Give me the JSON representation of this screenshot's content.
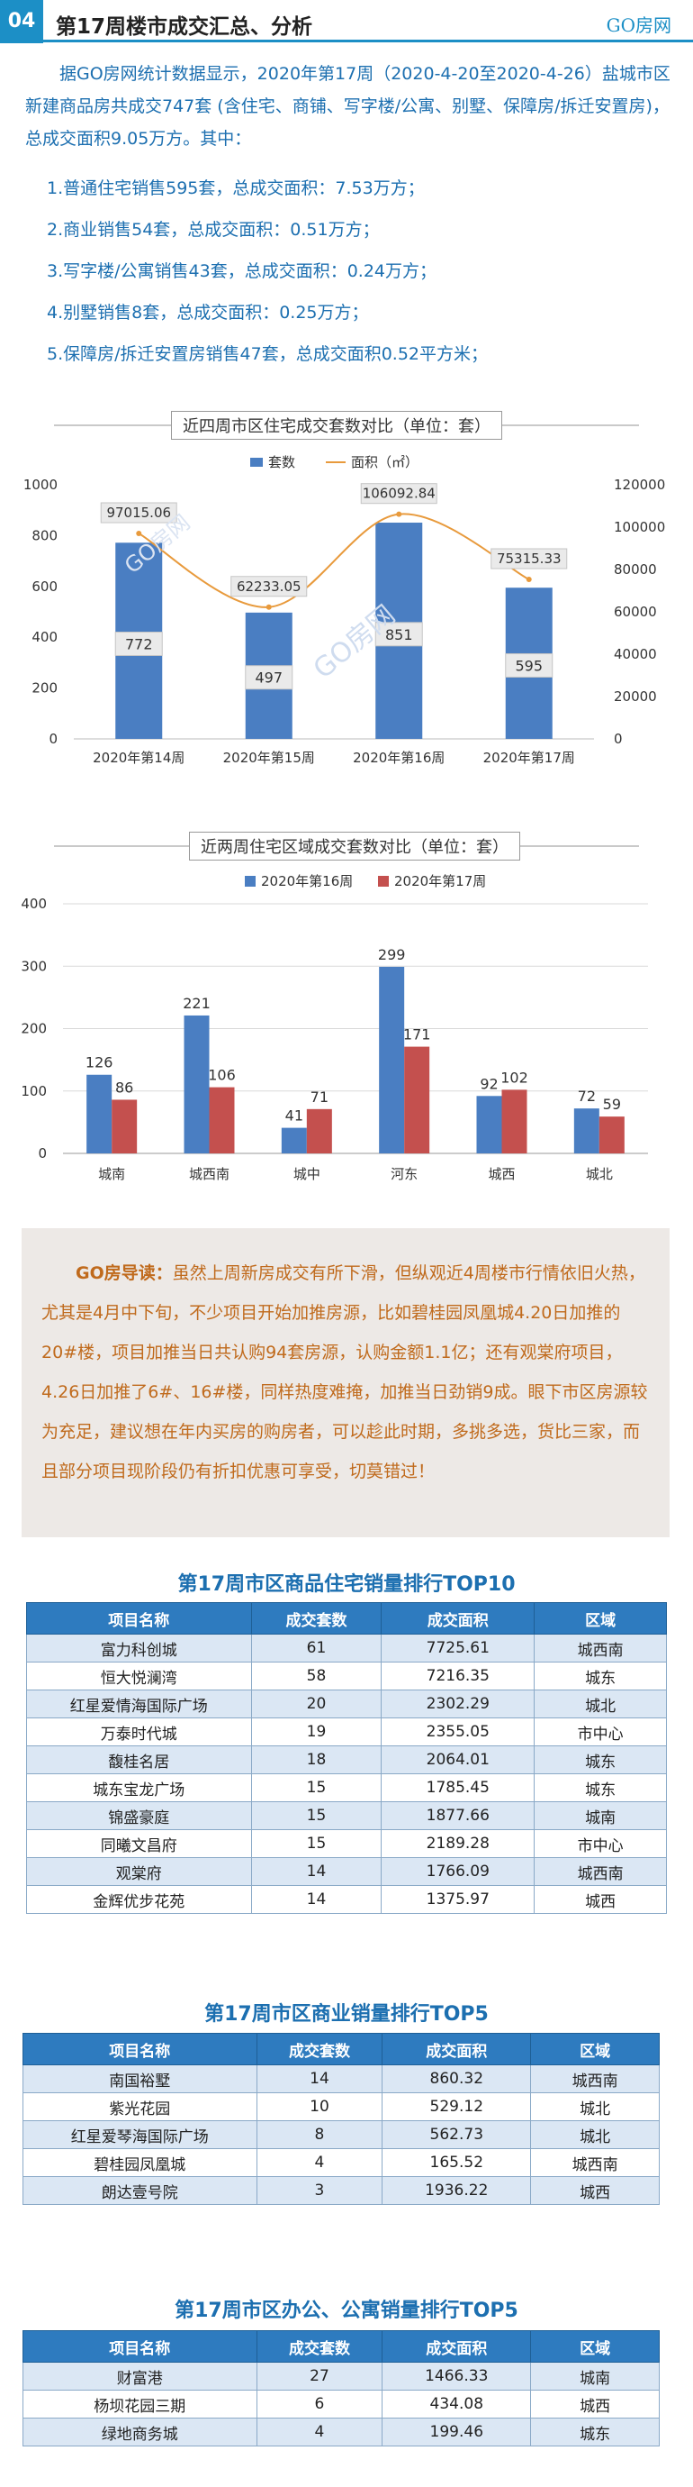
{
  "header": {
    "num": "04",
    "title": "第17周楼市成交汇总、分析",
    "logo": "GO房网"
  },
  "intro": "据GO房网统计数据显示，2020年第17周（2020-4-20至2020-4-26）盐城市区新建商品房共成交747套 (含住宅、商铺、写字楼/公寓、别墅、保障房/拆迁安置房)，总成交面积9.05万方。其中：",
  "stats": [
    "1.普通住宅销售595套，总成交面积：7.53万方；",
    "2.商业销售54套，总成交面积：0.51万方；",
    "3.写字楼/公寓销售43套，总成交面积：0.24万方；",
    "4.别墅销售8套，总成交面积：0.25万方；",
    "5.保障房/拆迁安置房销售47套，总成交面积0.52平方米；"
  ],
  "chart_data": [
    {
      "type": "bar",
      "title": "近四周市区住宅成交套数对比（单位：套）",
      "categories": [
        "2020年第14周",
        "2020年第15周",
        "2020年第16周",
        "2020年第17周"
      ],
      "series": [
        {
          "name": "套数",
          "kind": "bar",
          "values": [
            772,
            497,
            851,
            595
          ],
          "color": "#4a7ec2",
          "axis": "left"
        },
        {
          "name": "面积（㎡）",
          "kind": "line",
          "values": [
            97015.06,
            62233.05,
            106092.84,
            75315.33
          ],
          "color": "#e89a3c",
          "axis": "right"
        }
      ],
      "ylim_left": [
        0,
        1000
      ],
      "yticks_left": [
        0,
        200,
        400,
        600,
        800,
        1000
      ],
      "ylim_right": [
        0,
        120000
      ],
      "yticks_right": [
        0,
        20000,
        40000,
        60000,
        80000,
        100000,
        120000
      ],
      "watermark": "GO房网",
      "legend": "top-center"
    },
    {
      "type": "bar",
      "title": "近两周住宅区域成交套数对比（单位：套）",
      "categories": [
        "城南",
        "城西南",
        "城中",
        "河东",
        "城西",
        "城北"
      ],
      "series": [
        {
          "name": "2020年第16周",
          "values": [
            126,
            221,
            41,
            299,
            92,
            72
          ],
          "color": "#4a7ec2"
        },
        {
          "name": "2020年第17周",
          "values": [
            86,
            106,
            71,
            171,
            102,
            59
          ],
          "color": "#c4504e"
        }
      ],
      "ylim": [
        0,
        400
      ],
      "yticks": [
        0,
        100,
        200,
        300,
        400
      ],
      "grid": true,
      "legend": "top-center"
    }
  ],
  "guide": {
    "label": "GO房导读：",
    "text": "虽然上周新房成交有所下滑，但纵观近4周楼市行情依旧火热，尤其是4月中下旬，不少项目开始加推房源，比如碧桂园凤凰城4.20日加推的20#楼，项目加推当日共认购94套房源，认购金额1.1亿；还有观棠府项目，4.26日加推了6#、16#楼，同样热度难掩，加推当日劲销9成。眼下市区房源较为充足，建议想在年内买房的购房者，可以趁此时期，多挑多选，货比三家，而且部分项目现阶段仍有折扣优惠可享受，切莫错过！"
  },
  "tables": [
    {
      "title": "第17周市区商品住宅销量排行TOP10",
      "headers": [
        "项目名称",
        "成交套数",
        "成交面积",
        "区域"
      ],
      "rows": [
        [
          "富力科创城",
          "61",
          "7725.61",
          "城西南"
        ],
        [
          "恒大悦澜湾",
          "58",
          "7216.35",
          "城东"
        ],
        [
          "红星爱情海国际广场",
          "20",
          "2302.29",
          "城北"
        ],
        [
          "万泰时代城",
          "19",
          "2355.05",
          "市中心"
        ],
        [
          "馥桂名居",
          "18",
          "2064.01",
          "城东"
        ],
        [
          "城东宝龙广场",
          "15",
          "1785.45",
          "城东"
        ],
        [
          "锦盛豪庭",
          "15",
          "1877.66",
          "城南"
        ],
        [
          "同曦文昌府",
          "15",
          "2189.28",
          "市中心"
        ],
        [
          "观棠府",
          "14",
          "1766.09",
          "城西南"
        ],
        [
          "金辉优步花苑",
          "14",
          "1375.97",
          "城西"
        ]
      ]
    },
    {
      "title": "第17周市区商业销量排行TOP5",
      "headers": [
        "项目名称",
        "成交套数",
        "成交面积",
        "区域"
      ],
      "rows": [
        [
          "南国裕墅",
          "14",
          "860.32",
          "城西南"
        ],
        [
          "紫光花园",
          "10",
          "529.12",
          "城北"
        ],
        [
          "红星爱琴海国际广场",
          "8",
          "562.73",
          "城北"
        ],
        [
          "碧桂园凤凰城",
          "4",
          "165.52",
          "城西南"
        ],
        [
          "朗达壹号院",
          "3",
          "1936.22",
          "城西"
        ]
      ]
    },
    {
      "title": "第17周市区办公、公寓销量排行TOP5",
      "headers": [
        "项目名称",
        "成交套数",
        "成交面积",
        "区域"
      ],
      "rows": [
        [
          "财富港",
          "27",
          "1466.33",
          "城南"
        ],
        [
          "杨坝花园三期",
          "6",
          "434.08",
          "城西"
        ],
        [
          "绿地商务城",
          "4",
          "199.46",
          "城东"
        ]
      ]
    }
  ]
}
